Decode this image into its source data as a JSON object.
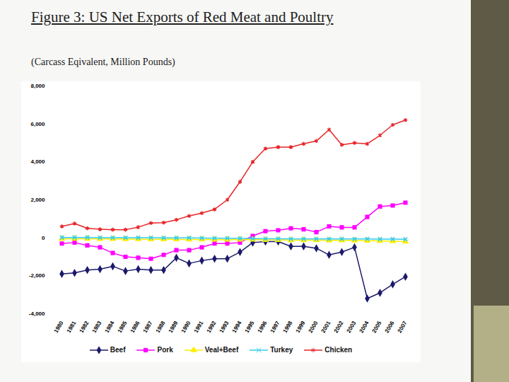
{
  "chart_data": {
    "type": "line",
    "title": "Figure 3: US Net Exports of Red Meat and Poultry",
    "subtitle": "(Carcass Eqivalent, Million Pounds)",
    "categories": [
      "1980",
      "1981",
      "1982",
      "1983",
      "1984",
      "1985",
      "1986",
      "1987",
      "1988",
      "1989",
      "1990",
      "1991",
      "1992",
      "1993",
      "1994",
      "1995",
      "1996",
      "1997",
      "1998",
      "1999",
      "2000",
      "2001",
      "2002",
      "2003",
      "2004",
      "2005",
      "2006",
      "2007"
    ],
    "ylim": [
      -4000,
      8000
    ],
    "yticks": [
      {
        "value": -4000,
        "label": "-4,000"
      },
      {
        "value": -2000,
        "label": "-2,000"
      },
      0,
      {
        "value": 2000,
        "label": "2,000"
      },
      {
        "value": 4000,
        "label": "4,000"
      },
      {
        "value": 6000,
        "label": "6,000"
      },
      {
        "value": 8000,
        "label": "8,000"
      }
    ],
    "grid": false,
    "legend": "bottom",
    "series": [
      {
        "name": "Beef",
        "color": "#1c1a6b",
        "marker": "diamond",
        "values": [
          -1900,
          -1850,
          -1700,
          -1650,
          -1500,
          -1750,
          -1650,
          -1700,
          -1700,
          -1050,
          -1350,
          -1200,
          -1100,
          -1100,
          -750,
          -250,
          -200,
          -200,
          -450,
          -450,
          -550,
          -900,
          -750,
          -500,
          -3200,
          -2900,
          -2450,
          -2050
        ]
      },
      {
        "name": "Pork",
        "color": "#ff00ff",
        "marker": "square",
        "values": [
          -300,
          -250,
          -400,
          -500,
          -800,
          -1000,
          -1050,
          -1100,
          -900,
          -650,
          -650,
          -500,
          -300,
          -300,
          -250,
          100,
          350,
          400,
          500,
          450,
          300,
          600,
          550,
          550,
          1100,
          1650,
          1700,
          1850
        ]
      },
      {
        "name": "Veal+Beef",
        "color": "#ffee00",
        "marker": "triangle",
        "values": [
          -50,
          -50,
          -50,
          -60,
          -60,
          -70,
          -70,
          -80,
          -80,
          -80,
          -90,
          -90,
          -100,
          -100,
          -100,
          -100,
          -110,
          -110,
          -120,
          -120,
          -120,
          -130,
          -130,
          -140,
          -150,
          -160,
          -180,
          -200
        ]
      },
      {
        "name": "Turkey",
        "color": "#33ccee",
        "marker": "times",
        "values": [
          20,
          20,
          20,
          10,
          10,
          10,
          10,
          10,
          0,
          0,
          0,
          -10,
          -20,
          -20,
          -30,
          -40,
          -50,
          -50,
          -60,
          -60,
          -60,
          -60,
          -60,
          -60,
          -60,
          -70,
          -70,
          -80
        ]
      },
      {
        "name": "Chicken",
        "color": "#e8262a",
        "marker": "asterisk",
        "values": [
          600,
          750,
          500,
          450,
          430,
          430,
          560,
          780,
          800,
          950,
          1150,
          1300,
          1500,
          2000,
          2950,
          4000,
          4700,
          4780,
          4780,
          4950,
          5100,
          5700,
          4900,
          5000,
          4950,
          5400,
          5950,
          6200
        ]
      }
    ]
  }
}
